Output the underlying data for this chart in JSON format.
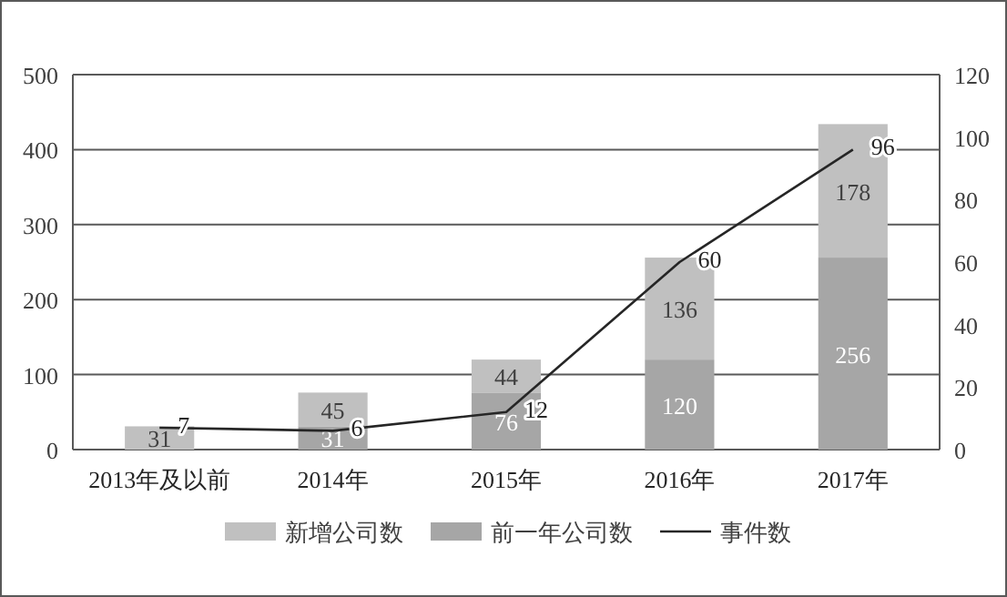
{
  "chart_data": {
    "type": "bar",
    "stacked": true,
    "categories": [
      "2013年及以前",
      "2014年",
      "2015年",
      "2016年",
      "2017年"
    ],
    "series": [
      {
        "name": "前一年公司数",
        "color": "#a6a6a6",
        "values": [
          null,
          31,
          76,
          120,
          256
        ]
      },
      {
        "name": "新增公司数",
        "color": "#c0c0c0",
        "values": [
          31,
          45,
          44,
          136,
          178
        ]
      },
      {
        "name": "事件数",
        "type": "line",
        "axis": "y2",
        "color": "#262626",
        "values": [
          7,
          6,
          12,
          60,
          96
        ]
      }
    ],
    "ylim": [
      0,
      500
    ],
    "yticks": [
      0,
      100,
      200,
      300,
      400,
      500
    ],
    "y2lim": [
      0,
      120
    ],
    "y2ticks": [
      0,
      20,
      40,
      60,
      80,
      100,
      120
    ],
    "grid": "y",
    "legend": "bottom",
    "data_labels": true,
    "marker": "none",
    "line_style": "solid"
  }
}
